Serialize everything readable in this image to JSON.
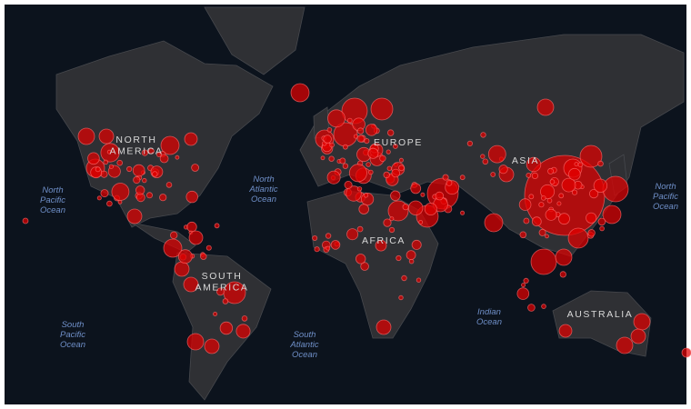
{
  "labels": [
    {
      "lines": [
        "North",
        "Pacific",
        "Ocean"
      ],
      "kind": "ocean"
    },
    {
      "lines": [
        "NORTH",
        "AMERICA"
      ],
      "kind": "continent"
    },
    {
      "lines": [
        "North",
        "Atlantic",
        "Ocean"
      ],
      "kind": "ocean"
    },
    {
      "lines": [
        "EUROPE"
      ],
      "kind": "continent"
    },
    {
      "lines": [
        "ASIA"
      ],
      "kind": "continent"
    },
    {
      "lines": [
        "AFRICA"
      ],
      "kind": "continent"
    },
    {
      "lines": [
        "SOUTH",
        "AMERICA"
      ],
      "kind": "continent"
    },
    {
      "lines": [
        "North",
        "Pacific",
        "Ocean"
      ],
      "kind": "ocean"
    },
    {
      "lines": [
        "South",
        "Pacific",
        "Ocean"
      ],
      "kind": "ocean"
    },
    {
      "lines": [
        "South",
        "Atlantic",
        "Ocean"
      ],
      "kind": "ocean"
    },
    {
      "lines": [
        "Indian",
        "Ocean"
      ],
      "kind": "ocean"
    },
    {
      "lines": [
        "AUSTRALIA"
      ],
      "kind": "continent"
    }
  ]
}
